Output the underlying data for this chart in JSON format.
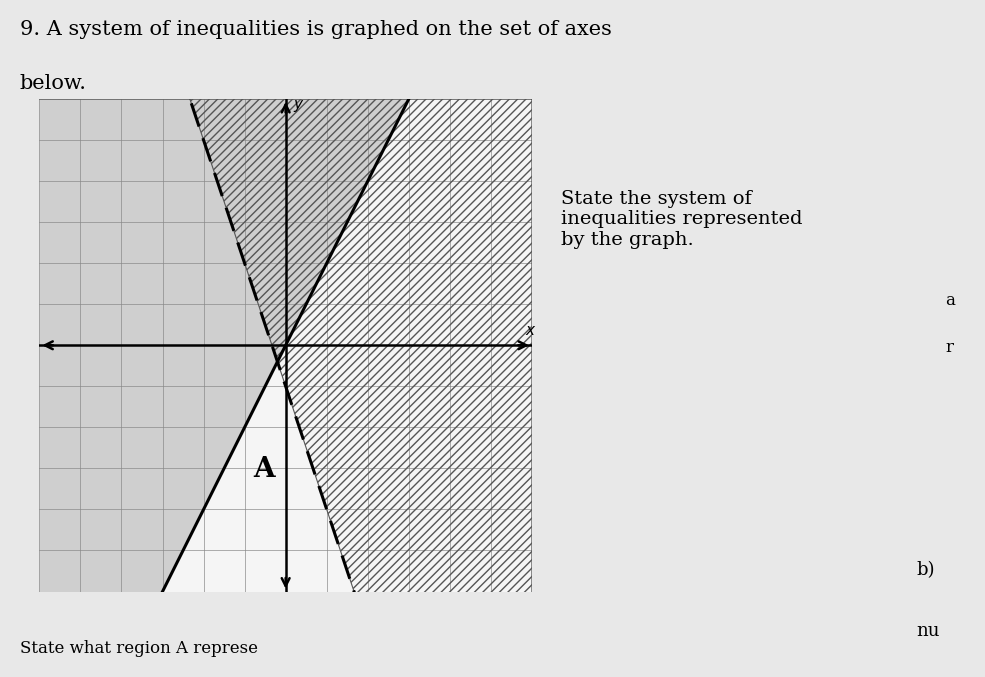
{
  "title_line1": "9. A system of inequalities is graphed on the set of axes",
  "title_line2": "below.",
  "side_text": "State the system of\ninequalities represented\nby the graph.",
  "side_text2a": "a",
  "side_text2b": "r",
  "bottom_text_b": "b)",
  "bottom_text_nu": "nu",
  "xlim": [
    -6,
    6
  ],
  "ylim": [
    -6,
    6
  ],
  "solid_line_slope": 2,
  "solid_line_intercept": 0,
  "dashed_line_slope": -3,
  "dashed_line_intercept": -1,
  "solid_shade_color": "#b0b0b0",
  "solid_shade_alpha": 0.55,
  "hatch_color": "#555555",
  "hatch_pattern": "////",
  "hatch_lw": 0.8,
  "line_color": "#000000",
  "line_lw": 2.2,
  "grid_color": "#888888",
  "grid_lw": 0.6,
  "axis_lw": 1.8,
  "bg_color": "#e8e8e8",
  "plot_bg": "#f5f5f5",
  "region_A_label": "A",
  "region_A_x": -0.8,
  "region_A_y": -3.2,
  "fig_width": 9.85,
  "fig_height": 6.77,
  "dpi": 100
}
